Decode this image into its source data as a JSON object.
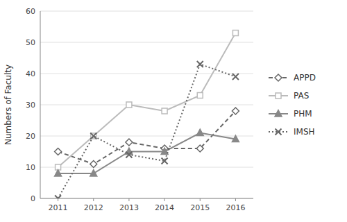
{
  "chart_data": {
    "type": "line",
    "x": [
      2011,
      2012,
      2013,
      2014,
      2015,
      2016
    ],
    "xlim": [
      2010.5,
      2016.5
    ],
    "xticks": [
      2011,
      2012,
      2013,
      2014,
      2015,
      2016
    ],
    "ylim": [
      0,
      60
    ],
    "yticks": [
      0,
      10,
      20,
      30,
      40,
      50,
      60
    ],
    "y_label": "Numbers of Faculty",
    "grid": "y",
    "legend": "right",
    "series": [
      {
        "name": "APPD",
        "color": "#666666",
        "marker": "diamond",
        "line_style": "dashed",
        "values": [
          15,
          11,
          18,
          16,
          16,
          28
        ]
      },
      {
        "name": "PAS",
        "color": "#bbbbbb",
        "marker": "square",
        "line_style": "solid",
        "values": [
          10,
          20,
          30,
          28,
          33,
          53
        ]
      },
      {
        "name": "PHM",
        "color": "#888888",
        "marker": "triangle",
        "line_style": "solid",
        "values": [
          8,
          8,
          15,
          15,
          21,
          19
        ]
      },
      {
        "name": "IMSH",
        "color": "#666666",
        "marker": "x",
        "line_style": "dotted",
        "values": [
          0,
          20,
          14,
          12,
          43,
          39
        ]
      }
    ]
  }
}
